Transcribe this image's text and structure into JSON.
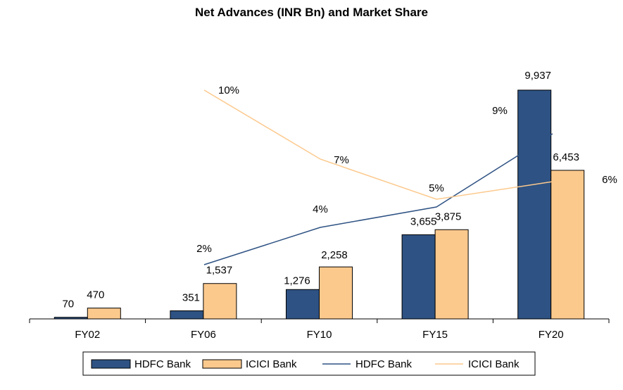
{
  "chart_data": {
    "type": "bar",
    "title": "Net Advances (INR Bn) and Market Share",
    "categories": [
      "FY02",
      "FY06",
      "FY10",
      "FY15",
      "FY20"
    ],
    "series": [
      {
        "name": "HDFC Bank",
        "kind": "bar",
        "color": "#2e5283",
        "values": [
          70,
          351,
          1276,
          3655,
          9937
        ],
        "labels": [
          "70",
          "351",
          "1,276",
          "3,655",
          "9,937"
        ]
      },
      {
        "name": "ICICI Bank",
        "kind": "bar",
        "color": "#fcc98d",
        "values": [
          470,
          1537,
          2258,
          3875,
          6453
        ],
        "labels": [
          "470",
          "1,537",
          "2,258",
          "3,875",
          "6,453"
        ]
      },
      {
        "name": "HDFC Bank",
        "kind": "line",
        "color": "#2e5283",
        "values": [
          null,
          2,
          4,
          5,
          9
        ],
        "labels": [
          null,
          "2%",
          "4%",
          null,
          "9%"
        ]
      },
      {
        "name": "ICICI Bank",
        "kind": "line",
        "color": "#fcc98d",
        "values": [
          null,
          10,
          7,
          5,
          6
        ],
        "labels": [
          null,
          "10%",
          "7%",
          "5%",
          "6%"
        ]
      }
    ],
    "ylim": [
      0,
      10000
    ],
    "xlabel": "",
    "ylabel": "",
    "legend": [
      "HDFC Bank",
      "ICICI Bank",
      "HDFC Bank",
      "ICICI Bank"
    ],
    "legend_position": "bottom"
  }
}
